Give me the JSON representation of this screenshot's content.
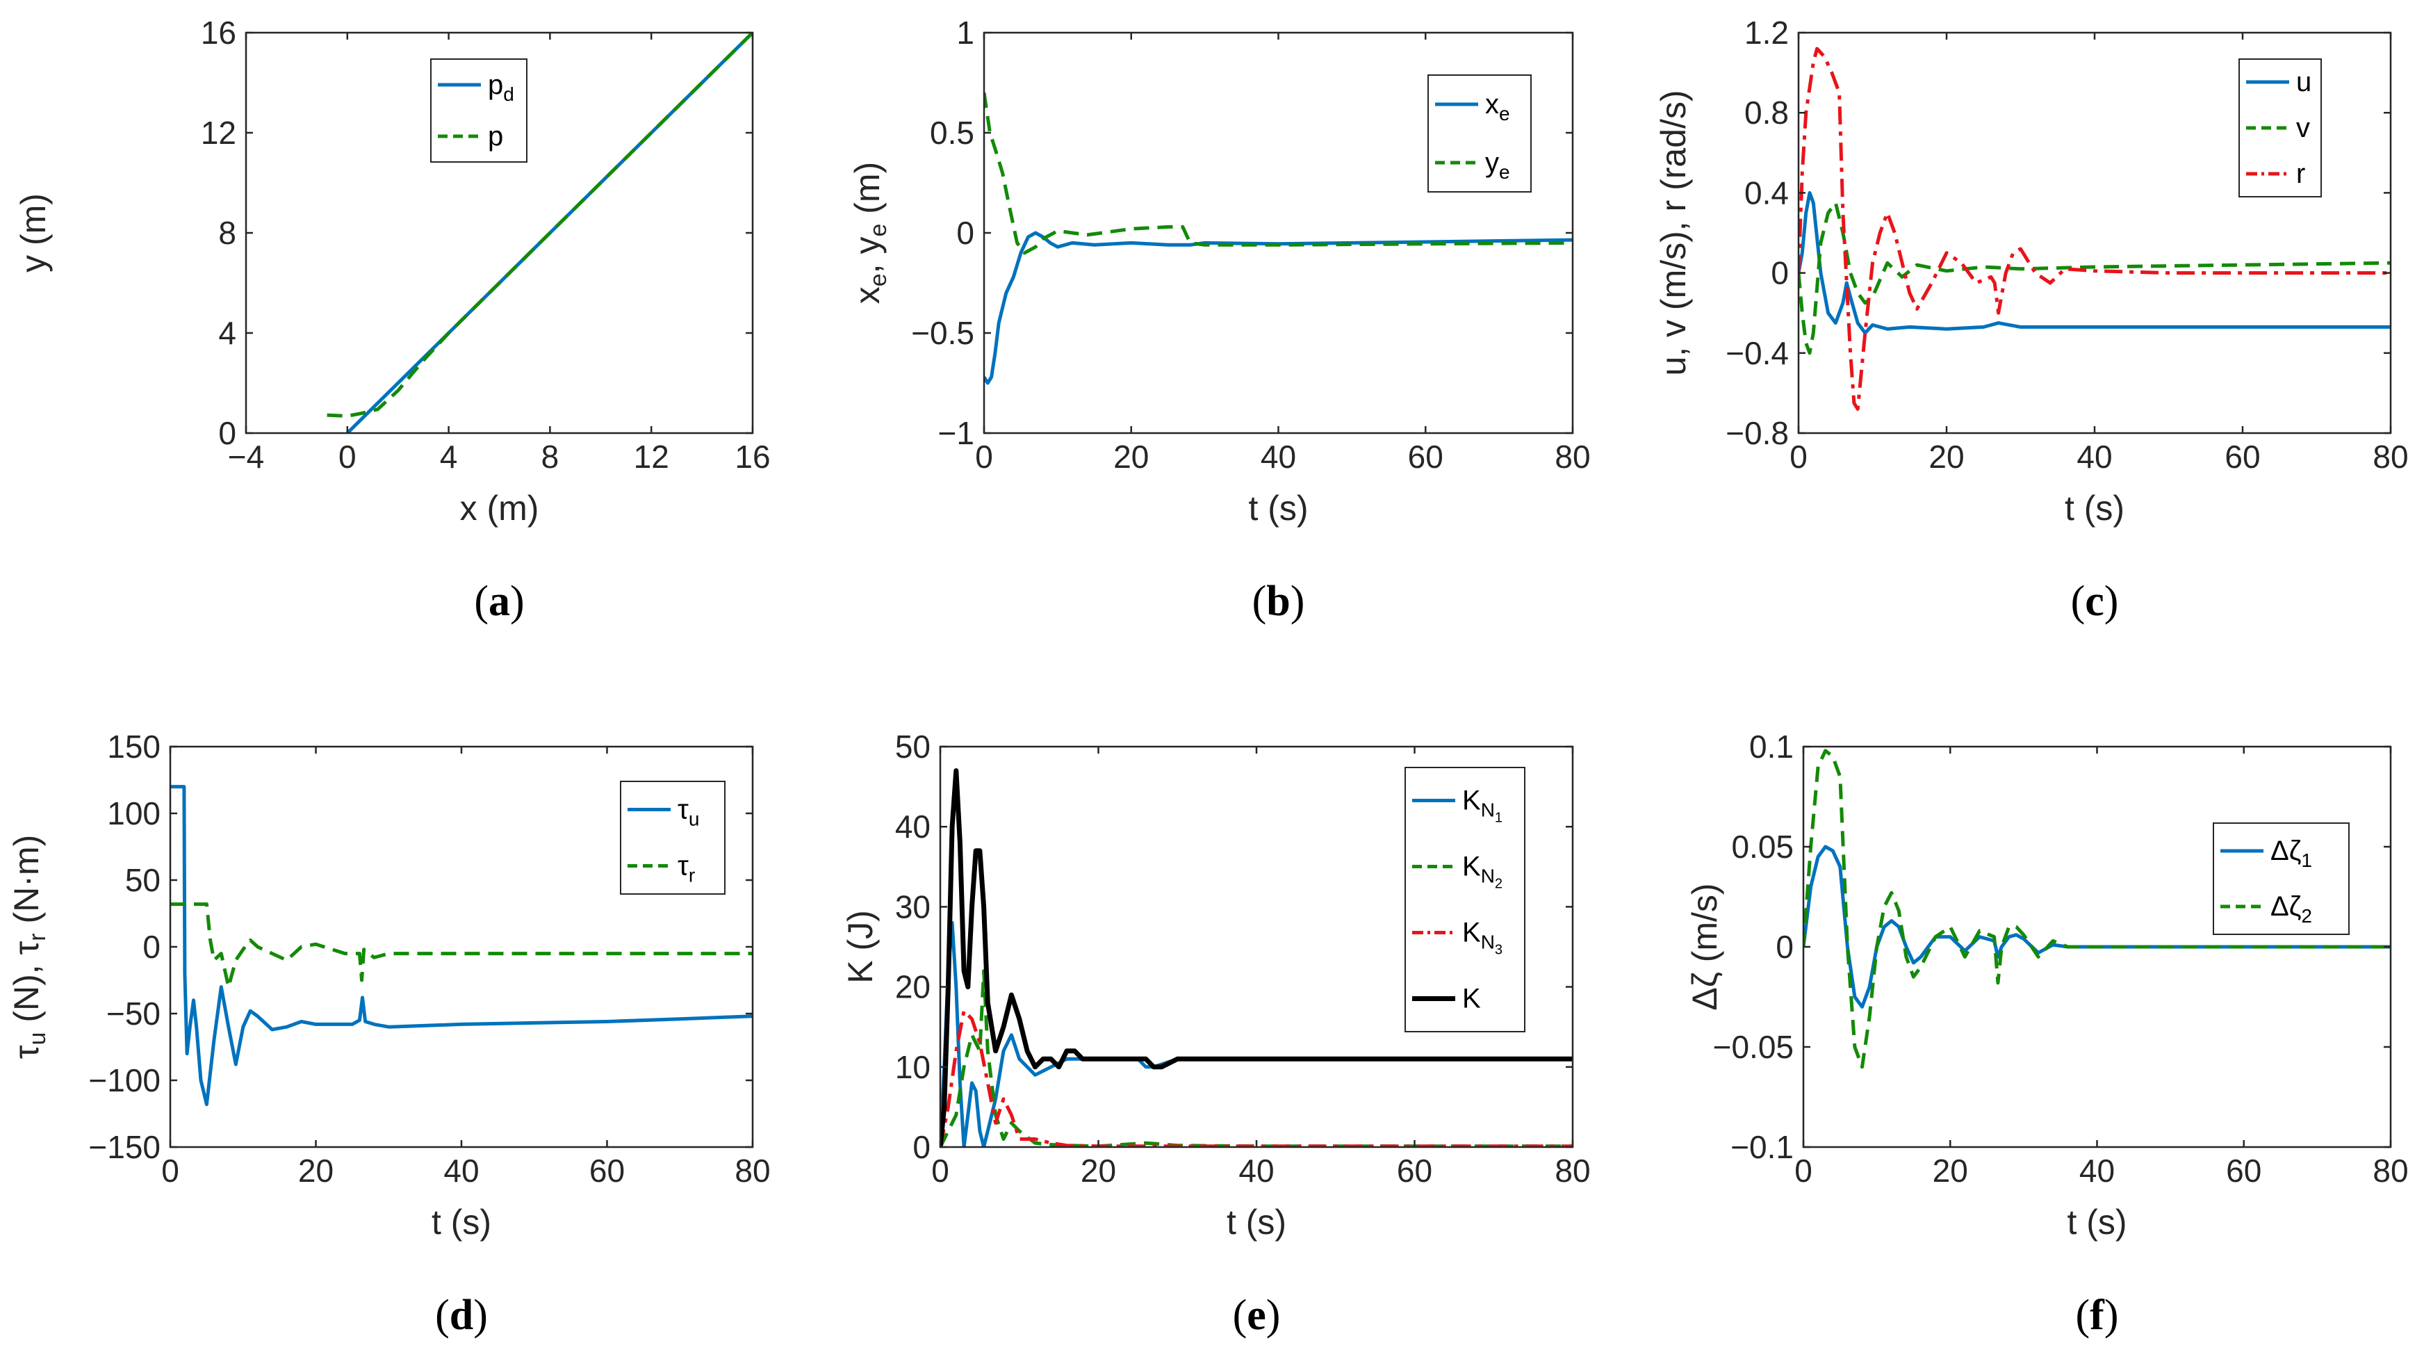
{
  "colors": {
    "blue": "#0072BD",
    "green": "#138A07",
    "red": "#E8141B",
    "black": "#000000",
    "axis": "#262626"
  },
  "chart_data": [
    {
      "id": "a",
      "type": "line",
      "caption": "a",
      "xlabel": "x (m)",
      "ylabel": "y (m)",
      "xlim": [
        -4,
        16
      ],
      "ylim": [
        0,
        16
      ],
      "xticks": [
        -4,
        0,
        4,
        8,
        12,
        16
      ],
      "xtick_labels": [
        "−4",
        "0",
        "4",
        "8",
        "12",
        "16"
      ],
      "yticks": [
        0,
        4,
        8,
        12,
        16
      ],
      "ytick_labels": [
        "0",
        "4",
        "8",
        "12",
        "16"
      ],
      "legend": "top-center",
      "series": [
        {
          "name": "p",
          "sub": "d",
          "color": "blue",
          "dash": "solid",
          "width": 5,
          "x": [
            0,
            4,
            8,
            12,
            16
          ],
          "y": [
            0,
            4,
            8,
            12,
            16
          ]
        },
        {
          "name": "p",
          "sub": "",
          "color": "green",
          "dash": "dash",
          "width": 5,
          "x": [
            -0.8,
            0,
            0.6,
            1.2,
            2,
            3,
            4,
            6,
            8,
            12,
            16
          ],
          "y": [
            0.72,
            0.68,
            0.8,
            0.95,
            1.7,
            2.9,
            4.0,
            6.0,
            8.0,
            12.0,
            16.0
          ]
        }
      ]
    },
    {
      "id": "b",
      "type": "line",
      "caption": "b",
      "xlabel": "t (s)",
      "ylabel": "x_e, y_e (m)",
      "xlim": [
        0,
        80
      ],
      "ylim": [
        -1,
        1
      ],
      "xticks": [
        0,
        20,
        40,
        60,
        80
      ],
      "xtick_labels": [
        "0",
        "20",
        "40",
        "60",
        "80"
      ],
      "yticks": [
        -1,
        -0.5,
        0,
        0.5,
        1
      ],
      "ytick_labels": [
        "−1",
        "−0.5",
        "0",
        "0.5",
        "1"
      ],
      "legend": "top-right",
      "series": [
        {
          "name": "x",
          "sub": "e",
          "color": "blue",
          "dash": "solid",
          "width": 5,
          "x": [
            0,
            0.5,
            1,
            1.5,
            2,
            3,
            4,
            5,
            6,
            7,
            8,
            9,
            10,
            12,
            15,
            20,
            25,
            28,
            30,
            40,
            50,
            60,
            70,
            80
          ],
          "y": [
            -0.72,
            -0.75,
            -0.72,
            -0.6,
            -0.45,
            -0.3,
            -0.22,
            -0.1,
            -0.02,
            0.0,
            -0.02,
            -0.05,
            -0.07,
            -0.05,
            -0.06,
            -0.05,
            -0.06,
            -0.06,
            -0.05,
            -0.055,
            -0.05,
            -0.045,
            -0.04,
            -0.035
          ]
        },
        {
          "name": "y",
          "sub": "e",
          "color": "green",
          "dash": "dash",
          "width": 5,
          "x": [
            0,
            0.8,
            1.5,
            2.5,
            3.5,
            4.5,
            5.5,
            7,
            8,
            10,
            12,
            14,
            16,
            20,
            25,
            27,
            28,
            30,
            40,
            60,
            80
          ],
          "y": [
            0.7,
            0.5,
            0.42,
            0.3,
            0.12,
            -0.05,
            -0.1,
            -0.07,
            -0.03,
            0.01,
            0.0,
            -0.01,
            0.0,
            0.02,
            0.03,
            0.03,
            -0.05,
            -0.06,
            -0.06,
            -0.055,
            -0.05
          ]
        }
      ]
    },
    {
      "id": "c",
      "type": "line",
      "caption": "c",
      "xlabel": "t (s)",
      "ylabel": "u, v (m/s), r (rad/s)",
      "xlim": [
        0,
        80
      ],
      "ylim": [
        -0.8,
        1.2
      ],
      "xticks": [
        0,
        20,
        40,
        60,
        80
      ],
      "xtick_labels": [
        "0",
        "20",
        "40",
        "60",
        "80"
      ],
      "yticks": [
        -0.8,
        -0.4,
        0,
        0.4,
        0.8,
        1.2
      ],
      "ytick_labels": [
        "−0.8",
        "−0.4",
        "0",
        "0.4",
        "0.8",
        "1.2"
      ],
      "legend": "top-right",
      "series": [
        {
          "name": "u",
          "sub": "",
          "color": "blue",
          "dash": "solid",
          "width": 5,
          "x": [
            0,
            0.5,
            1,
            1.5,
            2,
            3,
            4,
            5,
            6,
            6.5,
            7,
            8,
            9,
            10,
            12,
            15,
            20,
            25,
            26,
            27,
            30,
            40,
            60,
            80
          ],
          "y": [
            0,
            0.1,
            0.3,
            0.4,
            0.35,
            0.0,
            -0.2,
            -0.25,
            -0.15,
            -0.05,
            -0.12,
            -0.25,
            -0.3,
            -0.26,
            -0.28,
            -0.27,
            -0.28,
            -0.27,
            -0.26,
            -0.25,
            -0.27,
            -0.27,
            -0.27,
            -0.27
          ]
        },
        {
          "name": "v",
          "sub": "",
          "color": "green",
          "dash": "dash",
          "width": 5,
          "x": [
            0,
            0.5,
            1,
            1.5,
            2,
            3,
            4,
            5,
            6,
            7,
            8,
            9,
            10,
            12,
            14,
            16,
            20,
            25,
            30,
            40,
            60,
            80
          ],
          "y": [
            0,
            -0.2,
            -0.35,
            -0.4,
            -0.3,
            0.15,
            0.3,
            0.35,
            0.2,
            0.0,
            -0.1,
            -0.15,
            -0.12,
            0.05,
            -0.02,
            0.04,
            0.01,
            0.03,
            0.02,
            0.03,
            0.04,
            0.05
          ]
        },
        {
          "name": "r",
          "sub": "",
          "color": "red",
          "dash": "dashdot",
          "width": 5,
          "x": [
            0,
            0.5,
            1,
            2,
            2.5,
            3.5,
            4.5,
            5.5,
            6,
            7,
            7.5,
            8,
            9,
            10,
            11,
            12,
            13,
            15,
            16,
            18,
            20,
            22,
            24,
            26,
            26.5,
            27,
            28,
            29,
            30,
            32,
            34,
            36,
            40,
            50,
            60,
            70,
            80
          ],
          "y": [
            0,
            0.5,
            0.8,
            1.05,
            1.12,
            1.08,
            1.0,
            0.9,
            0.3,
            -0.4,
            -0.65,
            -0.68,
            -0.3,
            0.05,
            0.2,
            0.3,
            0.2,
            -0.1,
            -0.18,
            -0.05,
            0.1,
            0.05,
            -0.05,
            -0.02,
            -0.05,
            -0.2,
            0.0,
            0.1,
            0.12,
            0.0,
            -0.05,
            0.02,
            0.01,
            0.0,
            0.0,
            0.0,
            0.0
          ]
        }
      ]
    },
    {
      "id": "d",
      "type": "line",
      "caption": "d",
      "xlabel": "t (s)",
      "ylabel": "τ_u (N), τ_r (N·m)",
      "xlim": [
        0,
        80
      ],
      "ylim": [
        -150,
        150
      ],
      "xticks": [
        0,
        20,
        40,
        60,
        80
      ],
      "xtick_labels": [
        "0",
        "20",
        "40",
        "60",
        "80"
      ],
      "yticks": [
        -150,
        -100,
        -50,
        0,
        50,
        100,
        150
      ],
      "ytick_labels": [
        "−150",
        "−100",
        "−50",
        "0",
        "50",
        "100",
        "150"
      ],
      "legend": "top-right",
      "series": [
        {
          "name": "τ",
          "sub": "u",
          "color": "blue",
          "dash": "solid",
          "width": 5,
          "x": [
            0,
            1.9,
            2.0,
            2.3,
            2.7,
            3.2,
            3.6,
            4.2,
            5,
            6,
            7,
            8,
            9,
            10,
            11,
            12,
            14,
            16,
            18,
            20,
            25,
            26,
            26.4,
            26.8,
            28,
            30,
            40,
            50,
            60,
            70,
            80
          ],
          "y": [
            120,
            120,
            -20,
            -80,
            -60,
            -40,
            -60,
            -100,
            -118,
            -70,
            -30,
            -60,
            -88,
            -60,
            -48,
            -52,
            -62,
            -60,
            -56,
            -58,
            -58,
            -55,
            -38,
            -56,
            -58,
            -60,
            -58,
            -57,
            -56,
            -54,
            -52
          ]
        },
        {
          "name": "τ",
          "sub": "r",
          "color": "green",
          "dash": "dash",
          "width": 5,
          "x": [
            0,
            5,
            5.5,
            6,
            7,
            8,
            9,
            10,
            11,
            12,
            14,
            16,
            18,
            20,
            24,
            26,
            26.3,
            26.6,
            28,
            30,
            40,
            60,
            80
          ],
          "y": [
            32,
            32,
            5,
            -10,
            -5,
            -30,
            -10,
            -2,
            5,
            0,
            -5,
            -10,
            0,
            2,
            -5,
            -5,
            -25,
            -2,
            -8,
            -5,
            -5,
            -5,
            -5
          ]
        }
      ]
    },
    {
      "id": "e",
      "type": "line",
      "caption": "e",
      "xlabel": "t (s)",
      "ylabel": "K (J)",
      "xlim": [
        0,
        80
      ],
      "ylim": [
        0,
        50
      ],
      "xticks": [
        0,
        20,
        40,
        60,
        80
      ],
      "xtick_labels": [
        "0",
        "20",
        "40",
        "60",
        "80"
      ],
      "yticks": [
        0,
        10,
        20,
        30,
        40,
        50
      ],
      "ytick_labels": [
        "0",
        "10",
        "20",
        "30",
        "40",
        "50"
      ],
      "legend": "top-right",
      "series": [
        {
          "name": "K",
          "sub": "N",
          "subsub": "1",
          "color": "blue",
          "dash": "solid",
          "width": 5,
          "x": [
            0,
            0.5,
            1,
            1.5,
            2,
            2.5,
            3,
            3.5,
            4,
            4.5,
            5,
            5.5,
            6,
            7,
            8,
            9,
            10,
            12,
            14,
            16,
            18,
            20,
            25,
            26,
            27,
            30,
            40,
            60,
            80
          ],
          "y": [
            0,
            10,
            22,
            28,
            20,
            8,
            0,
            4,
            8,
            7,
            2,
            0,
            2,
            6,
            12,
            14,
            11,
            9,
            10,
            11,
            11,
            11,
            11,
            10,
            10,
            11,
            11,
            11,
            11
          ]
        },
        {
          "name": "K",
          "sub": "N",
          "subsub": "2",
          "color": "green",
          "dash": "dash",
          "width": 5,
          "x": [
            0,
            0.5,
            1,
            2,
            3,
            4,
            5,
            5.5,
            6,
            7,
            8,
            9,
            10,
            12,
            14,
            16,
            20,
            26,
            30,
            40,
            60,
            80
          ],
          "y": [
            0,
            1,
            2,
            4,
            10,
            14,
            12,
            22,
            12,
            4,
            1,
            3,
            2,
            0.5,
            0.3,
            0.2,
            0.1,
            0.5,
            0.2,
            0.1,
            0.1,
            0.1
          ]
        },
        {
          "name": "K",
          "sub": "N",
          "subsub": "3",
          "color": "red",
          "dash": "dashdot",
          "width": 5,
          "x": [
            0,
            1,
            2,
            3,
            4,
            5,
            6,
            7,
            8,
            9,
            10,
            12,
            14,
            16,
            20,
            30,
            40,
            60,
            80
          ],
          "y": [
            0,
            5,
            12,
            17,
            16,
            13,
            8,
            3,
            6,
            4,
            1,
            1,
            0.5,
            0.2,
            0.1,
            0.1,
            0.1,
            0.1,
            0.1
          ]
        },
        {
          "name": "K",
          "sub": "",
          "subsub": "",
          "color": "black",
          "dash": "solid",
          "width": 7,
          "x": [
            0,
            0.5,
            1,
            1.5,
            2,
            2.5,
            3,
            3.5,
            4,
            4.5,
            5,
            5.5,
            6,
            7,
            8,
            9,
            10,
            11,
            12,
            13,
            14,
            15,
            16,
            17,
            18,
            20,
            22,
            24,
            25,
            26,
            27,
            28,
            30,
            35,
            40,
            50,
            60,
            70,
            80
          ],
          "y": [
            0,
            5,
            20,
            40,
            47,
            38,
            22,
            20,
            30,
            37,
            37,
            30,
            18,
            12,
            15,
            19,
            16,
            12,
            10,
            11,
            11,
            10,
            12,
            12,
            11,
            11,
            11,
            11,
            11,
            11,
            10,
            10,
            11,
            11,
            11,
            11,
            11,
            11,
            11
          ]
        }
      ]
    },
    {
      "id": "f",
      "type": "line",
      "caption": "f",
      "xlabel": "t (s)",
      "ylabel": "Δζ (m/s)",
      "xlim": [
        0,
        80
      ],
      "ylim": [
        -0.1,
        0.1
      ],
      "xticks": [
        0,
        20,
        40,
        60,
        80
      ],
      "xtick_labels": [
        "0",
        "20",
        "40",
        "60",
        "80"
      ],
      "yticks": [
        -0.1,
        -0.05,
        0,
        0.05,
        0.1
      ],
      "ytick_labels": [
        "−0.1",
        "−0.05",
        "0",
        "0.05",
        "0.1"
      ],
      "legend": "top-right",
      "series": [
        {
          "name": "Δζ",
          "sub": "1",
          "color": "blue",
          "dash": "solid",
          "width": 5,
          "x": [
            0,
            1,
            2,
            3,
            4,
            5,
            6,
            7,
            8,
            9,
            10,
            11,
            12,
            13,
            14,
            15,
            16,
            18,
            20,
            22,
            24,
            26,
            26.5,
            27,
            28,
            29,
            30,
            32,
            34,
            36,
            40,
            50,
            60,
            80
          ],
          "y": [
            0,
            0.03,
            0.045,
            0.05,
            0.048,
            0.04,
            0.0,
            -0.025,
            -0.03,
            -0.02,
            0.0,
            0.01,
            0.013,
            0.01,
            0.0,
            -0.008,
            -0.005,
            0.005,
            0.005,
            -0.002,
            0.005,
            0.003,
            -0.005,
            0.0,
            0.005,
            0.006,
            0.004,
            -0.003,
            0.001,
            0.0,
            0.0,
            0.0,
            0.0,
            0.0
          ]
        },
        {
          "name": "Δζ",
          "sub": "2",
          "color": "green",
          "dash": "dash",
          "width": 5,
          "x": [
            0,
            1,
            2,
            3,
            4,
            5,
            6,
            7,
            8,
            9,
            10,
            11,
            12,
            13,
            14,
            15,
            16,
            18,
            20,
            22,
            24,
            26,
            26.5,
            27,
            28,
            29,
            30,
            32,
            34,
            36,
            40,
            50,
            60,
            80
          ],
          "y": [
            0,
            0.05,
            0.09,
            0.098,
            0.095,
            0.085,
            0.0,
            -0.05,
            -0.06,
            -0.035,
            0.0,
            0.02,
            0.027,
            0.018,
            -0.005,
            -0.015,
            -0.01,
            0.005,
            0.01,
            -0.005,
            0.008,
            0.005,
            -0.018,
            0.0,
            0.01,
            0.01,
            0.006,
            -0.005,
            0.003,
            0.0,
            0.0,
            0.0,
            0.0,
            0.0
          ]
        }
      ]
    }
  ]
}
